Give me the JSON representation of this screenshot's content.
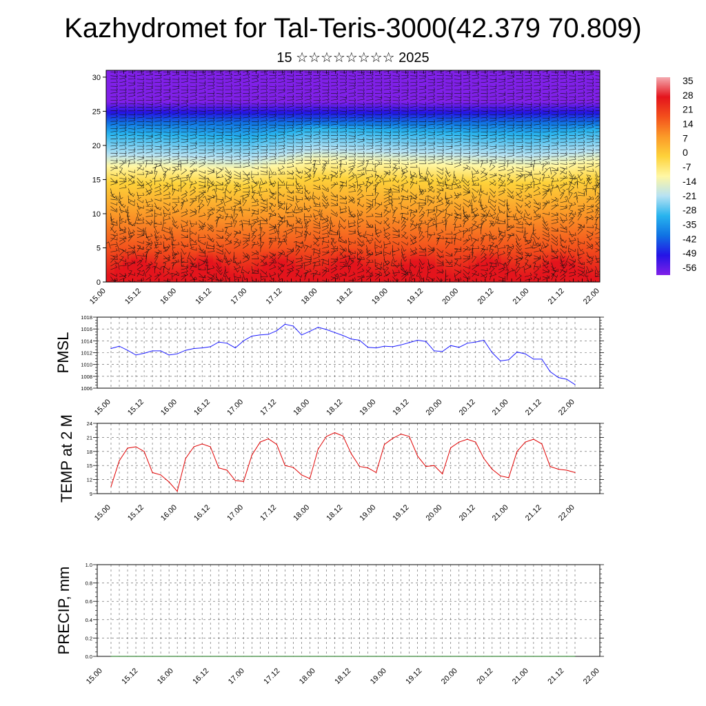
{
  "title": "Kazhydromet for Tal-Teris-3000(42.379 70.809)",
  "subtitle": "15 ☆☆☆☆☆☆☆☆ 2025",
  "chart_data": [
    {
      "type": "heatmap",
      "name": "vertical-cross-section",
      "x_ticks": [
        "15.00",
        "15.12",
        "16.00",
        "16.12",
        "17.00",
        "17.12",
        "18.00",
        "18.12",
        "19.00",
        "19.12",
        "20.00",
        "20.12",
        "21.00",
        "21.12",
        "22.00"
      ],
      "y_ticks": [
        "0",
        "5",
        "10",
        "15",
        "20",
        "25",
        "30"
      ],
      "ylim": [
        0,
        31
      ],
      "colorbar": {
        "labels": [
          "35",
          "28",
          "21",
          "14",
          "7",
          "0",
          "-7",
          "-14",
          "-21",
          "-28",
          "-35",
          "-42",
          "-49",
          "-56"
        ],
        "colors": [
          "#f4aab0",
          "#e4141c",
          "#f3501c",
          "#fb9a28",
          "#fdd23a",
          "#fff7a4",
          "#b7e2f3",
          "#28b4ee",
          "#1072e3",
          "#2414e6",
          "#8020e8"
        ]
      },
      "freezing_level_by_day": [
        {
          "x": "15.00",
          "y": 16.2
        },
        {
          "x": "16.00",
          "y": 16.0
        },
        {
          "x": "17.00",
          "y": 15.6
        },
        {
          "x": "18.00",
          "y": 17.0
        },
        {
          "x": "19.00",
          "y": 16.6
        },
        {
          "x": "20.00",
          "y": 16.3
        },
        {
          "x": "21.00",
          "y": 16.0
        },
        {
          "x": "22.00",
          "y": 16.8
        }
      ],
      "tropopause_level": 24.8
    },
    {
      "type": "line",
      "name": "pmsl",
      "ylabel": "PMSL",
      "ylim": [
        1006,
        1018
      ],
      "y_ticks": [
        "1006",
        "1008",
        "1010",
        "1012",
        "1014",
        "1016",
        "1018"
      ],
      "x_ticks": [
        "15.00",
        "15.12",
        "16.00",
        "16.12",
        "17.00",
        "17.12",
        "18.00",
        "18.12",
        "19.00",
        "19.12",
        "20.00",
        "20.12",
        "21.00",
        "21.12",
        "22.00"
      ],
      "color": "#1a1aff",
      "values": [
        1012.7,
        1013.1,
        1012.4,
        1011.6,
        1011.9,
        1012.3,
        1012.3,
        1011.6,
        1011.8,
        1012.4,
        1012.7,
        1012.8,
        1013.0,
        1013.8,
        1013.6,
        1012.8,
        1014.0,
        1014.8,
        1015.0,
        1015.1,
        1015.7,
        1016.8,
        1016.5,
        1015.0,
        1015.6,
        1016.3,
        1015.9,
        1015.4,
        1014.9,
        1014.3,
        1014.1,
        1012.9,
        1012.8,
        1013.1,
        1013.0,
        1013.3,
        1013.7,
        1014.1,
        1013.9,
        1012.3,
        1012.2,
        1013.2,
        1012.9,
        1013.6,
        1013.8,
        1014.1,
        1012.0,
        1010.6,
        1010.8,
        1012.1,
        1011.8,
        1010.9,
        1010.9,
        1008.8,
        1007.8,
        1007.5,
        1006.6
      ]
    },
    {
      "type": "line",
      "name": "temp-2m",
      "ylabel": "TEMP at 2 M",
      "ylim": [
        9,
        24
      ],
      "y_ticks": [
        "9",
        "12",
        "15",
        "18",
        "21",
        "24"
      ],
      "x_ticks": [
        "15.00",
        "15.12",
        "16.00",
        "16.12",
        "17.00",
        "17.12",
        "18.00",
        "18.12",
        "19.00",
        "19.12",
        "20.00",
        "20.12",
        "21.00",
        "21.12",
        "22.00"
      ],
      "color": "#e00000",
      "values": [
        10.5,
        16.0,
        18.7,
        19.0,
        18.0,
        13.5,
        13.0,
        11.5,
        9.5,
        16.5,
        19.0,
        19.6,
        19.0,
        14.5,
        14.0,
        11.8,
        11.6,
        17.2,
        20.0,
        20.7,
        19.5,
        15.0,
        14.6,
        13.0,
        12.2,
        18.5,
        21.2,
        22.0,
        21.3,
        17.5,
        14.8,
        14.5,
        13.5,
        19.5,
        20.8,
        21.7,
        21.2,
        17.0,
        14.8,
        15.0,
        13.2,
        18.8,
        20.0,
        20.6,
        20.0,
        16.5,
        14.2,
        12.8,
        12.4,
        18.0,
        20.0,
        20.6,
        19.6,
        14.8,
        14.2,
        14.0,
        13.5
      ]
    },
    {
      "type": "line",
      "name": "precip",
      "ylabel": "PRECIP, mm",
      "ylim": [
        0,
        1.0
      ],
      "y_ticks": [
        "0.0",
        "0.2",
        "0.4",
        "0.6",
        "0.8",
        "1.0"
      ],
      "x_ticks": [
        "15.00",
        "15.12",
        "16.00",
        "16.12",
        "17.00",
        "17.12",
        "18.00",
        "18.12",
        "19.00",
        "19.12",
        "20.00",
        "20.12",
        "21.00",
        "21.12",
        "22.00"
      ],
      "color": "#006400",
      "values": [
        0,
        0,
        0,
        0,
        0,
        0,
        0,
        0,
        0,
        0,
        0,
        0,
        0,
        0,
        0,
        0,
        0,
        0,
        0,
        0,
        0,
        0,
        0,
        0,
        0,
        0,
        0,
        0,
        0,
        0,
        0,
        0,
        0,
        0,
        0,
        0,
        0,
        0,
        0,
        0,
        0,
        0,
        0,
        0,
        0,
        0,
        0,
        0,
        0,
        0,
        0,
        0,
        0,
        0,
        0,
        0,
        0
      ]
    }
  ]
}
